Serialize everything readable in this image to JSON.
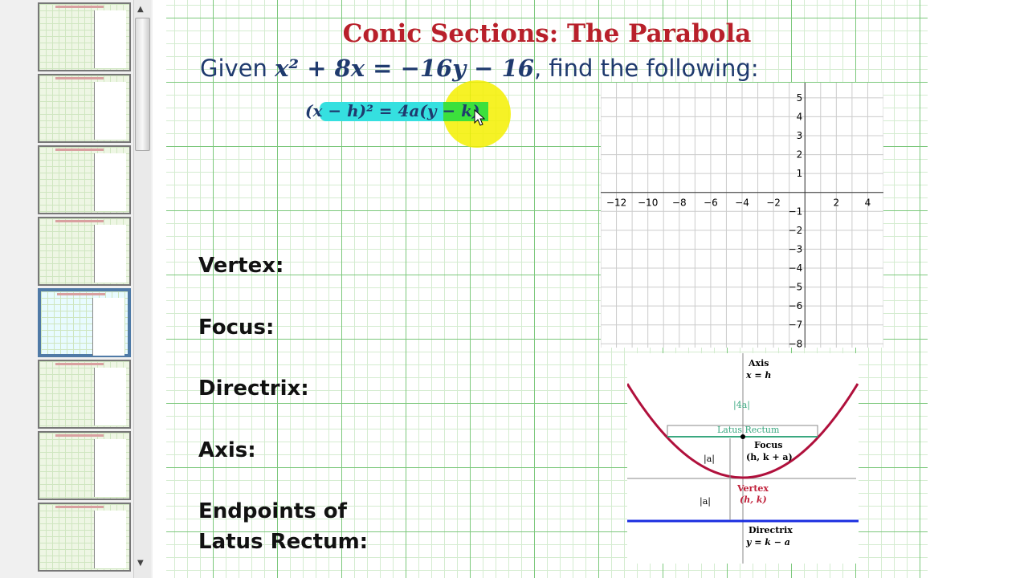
{
  "slide": {
    "title": "Conic Sections: The Parabola",
    "given_prefix": "Given ",
    "equation": "x² + 8x = −16y − 16",
    "given_suffix": ", find the following:",
    "standard_form": "(x − h)² = 4a(y − k)",
    "labels": [
      "Vertex:",
      "Focus:",
      "Directrix:",
      "Axis:",
      "Endpoints of",
      "Latus Rectum:"
    ]
  },
  "graph": {
    "x_ticks": [
      -12,
      -10,
      -8,
      -6,
      -4,
      -2,
      2,
      4
    ],
    "y_ticks": [
      5,
      4,
      3,
      2,
      1,
      -1,
      -2,
      -3,
      -4,
      -5,
      -6,
      -7,
      -8
    ],
    "xlim": [
      -13,
      5
    ],
    "ylim": [
      -8.2,
      5.8
    ]
  },
  "diagram": {
    "axis_label": "Axis",
    "axis_eq": "x = h",
    "width_label": "|4a|",
    "latus_label": "Latus Rectum",
    "focus_label": "Focus",
    "focus_coord": "(h, k + a)",
    "a_label": "|a|",
    "vertex_label": "Vertex",
    "vertex_coord": "(h, k)",
    "directrix_label": "Directrix",
    "directrix_eq": "y = k − a"
  },
  "colors": {
    "title": "#b8202a",
    "parabola": "#b0103c",
    "directrix": "#1a2ee0",
    "latus": "#3aa880",
    "highlight": "#35e0e0"
  },
  "thumbnails": {
    "count": 8,
    "selected_index": 4
  }
}
